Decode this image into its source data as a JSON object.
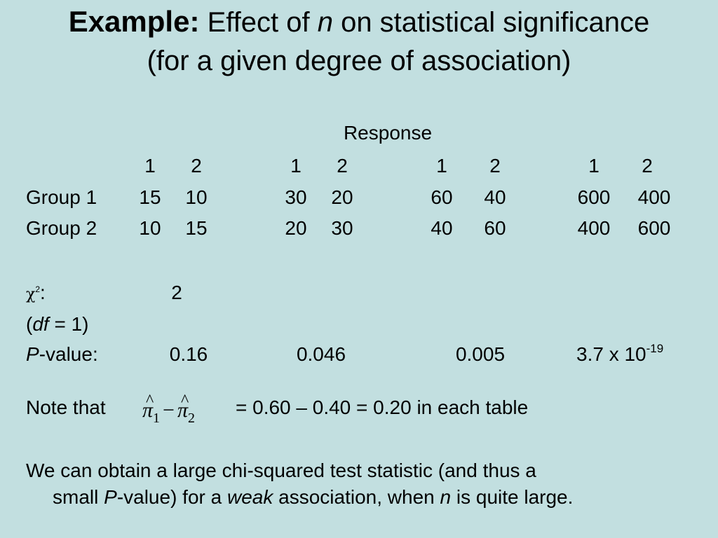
{
  "title": {
    "bold": "Example:",
    "pre_n": "Effect of",
    "n": "n",
    "post_n": "on statistical significance",
    "line2": "(for a given degree of association)"
  },
  "table": {
    "response_label": "Response",
    "col_headers": [
      "1",
      "2",
      "1",
      "2",
      "1",
      "2",
      "1",
      "2"
    ],
    "rows": [
      {
        "label": "Group 1",
        "values": [
          "15",
          "10",
          "30",
          "20",
          "60",
          "40",
          "600",
          "400"
        ]
      },
      {
        "label": "Group 2",
        "values": [
          "10",
          "15",
          "20",
          "30",
          "40",
          "60",
          "400",
          "600"
        ]
      }
    ]
  },
  "chi": {
    "symbol": "χ",
    "exp": "2",
    "colon": ":",
    "value": "2"
  },
  "df": {
    "open": "(",
    "label": "df",
    "rest": "= 1)"
  },
  "pvalue": {
    "label_p": "P",
    "label_rest": "-value:",
    "values": [
      "0.16",
      "0.046",
      "0.005"
    ],
    "last_base": "3.7 x 10",
    "last_exp": "-19"
  },
  "note": {
    "prefix": "Note that",
    "pi": "π",
    "hat": "^",
    "sub1": "1",
    "sub2": "2",
    "minus": "−",
    "suffix": "= 0.60 – 0.40 = 0.20 in each table"
  },
  "conclusion": {
    "line1": "We can obtain a large chi-squared test statistic (and thus a",
    "l2_a": "small",
    "l2_p": "P",
    "l2_b": "-value) for a",
    "l2_weak": "weak",
    "l2_c": "association, when",
    "l2_n": "n",
    "l2_d": "is quite large."
  }
}
